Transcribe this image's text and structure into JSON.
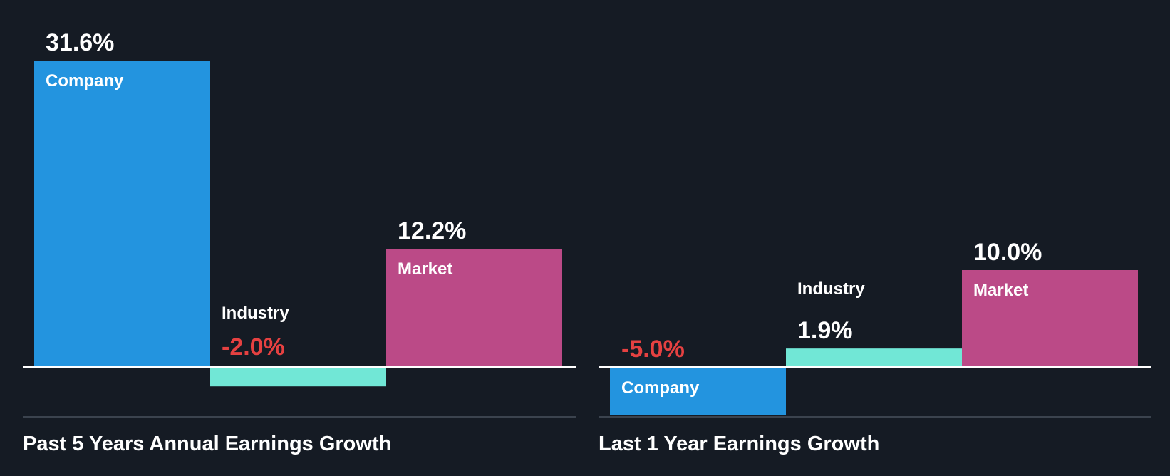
{
  "colors": {
    "background": "#151b24",
    "company": "#2394df",
    "industry": "#71e7d6",
    "market": "#bb4a87",
    "positive_text": "#ffffff",
    "negative_text": "#e64141",
    "axis": "#ffffff",
    "separator": "#3b434e"
  },
  "chart_data": [
    {
      "type": "bar",
      "title": "Past 5 Years Annual Earnings Growth",
      "categories": [
        "Company",
        "Industry",
        "Market"
      ],
      "values": [
        31.6,
        -2.0,
        12.2
      ],
      "value_labels": [
        "31.6%",
        "-2.0%",
        "12.2%"
      ],
      "unit": "%"
    },
    {
      "type": "bar",
      "title": "Last 1 Year Earnings Growth",
      "categories": [
        "Company",
        "Industry",
        "Market"
      ],
      "values": [
        -5.0,
        1.9,
        10.0
      ],
      "value_labels": [
        "-5.0%",
        "1.9%",
        "10.0%"
      ],
      "unit": "%"
    }
  ]
}
